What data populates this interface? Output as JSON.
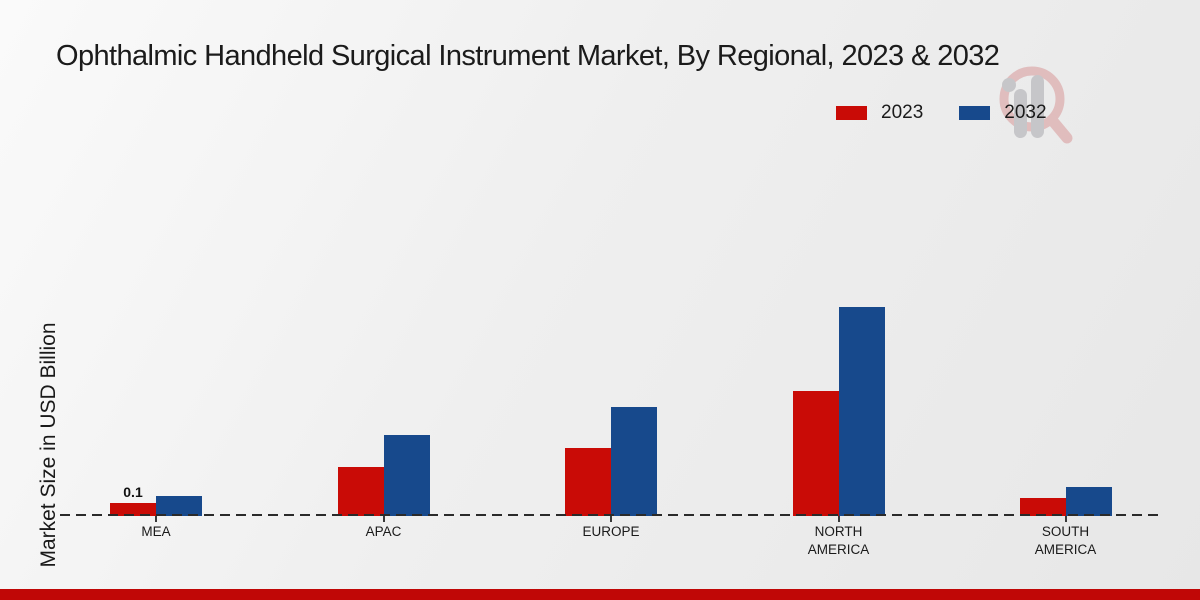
{
  "title": "Ophthalmic Handheld Surgical Instrument Market, By Regional, 2023 & 2032",
  "y_axis_label": "Market Size in USD Billion",
  "legend": {
    "items": [
      {
        "label": "2023",
        "color": "#c90b06"
      },
      {
        "label": "2032",
        "color": "#17498c"
      }
    ]
  },
  "watermark_icon": "magnifier-bar-chart-logo",
  "footer": {
    "color": "#c00706"
  },
  "chart_data": {
    "type": "bar",
    "title": "Ophthalmic Handheld Surgical Instrument Market, By Regional, 2023 & 2032",
    "xlabel": "",
    "ylabel": "Market Size in USD Billion",
    "categories": [
      "MEA",
      "APAC",
      "EUROPE",
      "NORTH AMERICA",
      "SOUTH AMERICA"
    ],
    "series": [
      {
        "name": "2023",
        "color": "#c90b06",
        "values": [
          0.1,
          0.38,
          0.52,
          0.96,
          0.14
        ]
      },
      {
        "name": "2032",
        "color": "#17498c",
        "values": [
          0.15,
          0.62,
          0.84,
          1.61,
          0.22
        ]
      }
    ],
    "point_labels": [
      {
        "series": 0,
        "category": 0,
        "text": "0.1"
      }
    ],
    "baseline": 0,
    "axis_style": "dashed-zero-line",
    "grid": false,
    "legend_position": "top-right",
    "units": "USD Billion"
  }
}
